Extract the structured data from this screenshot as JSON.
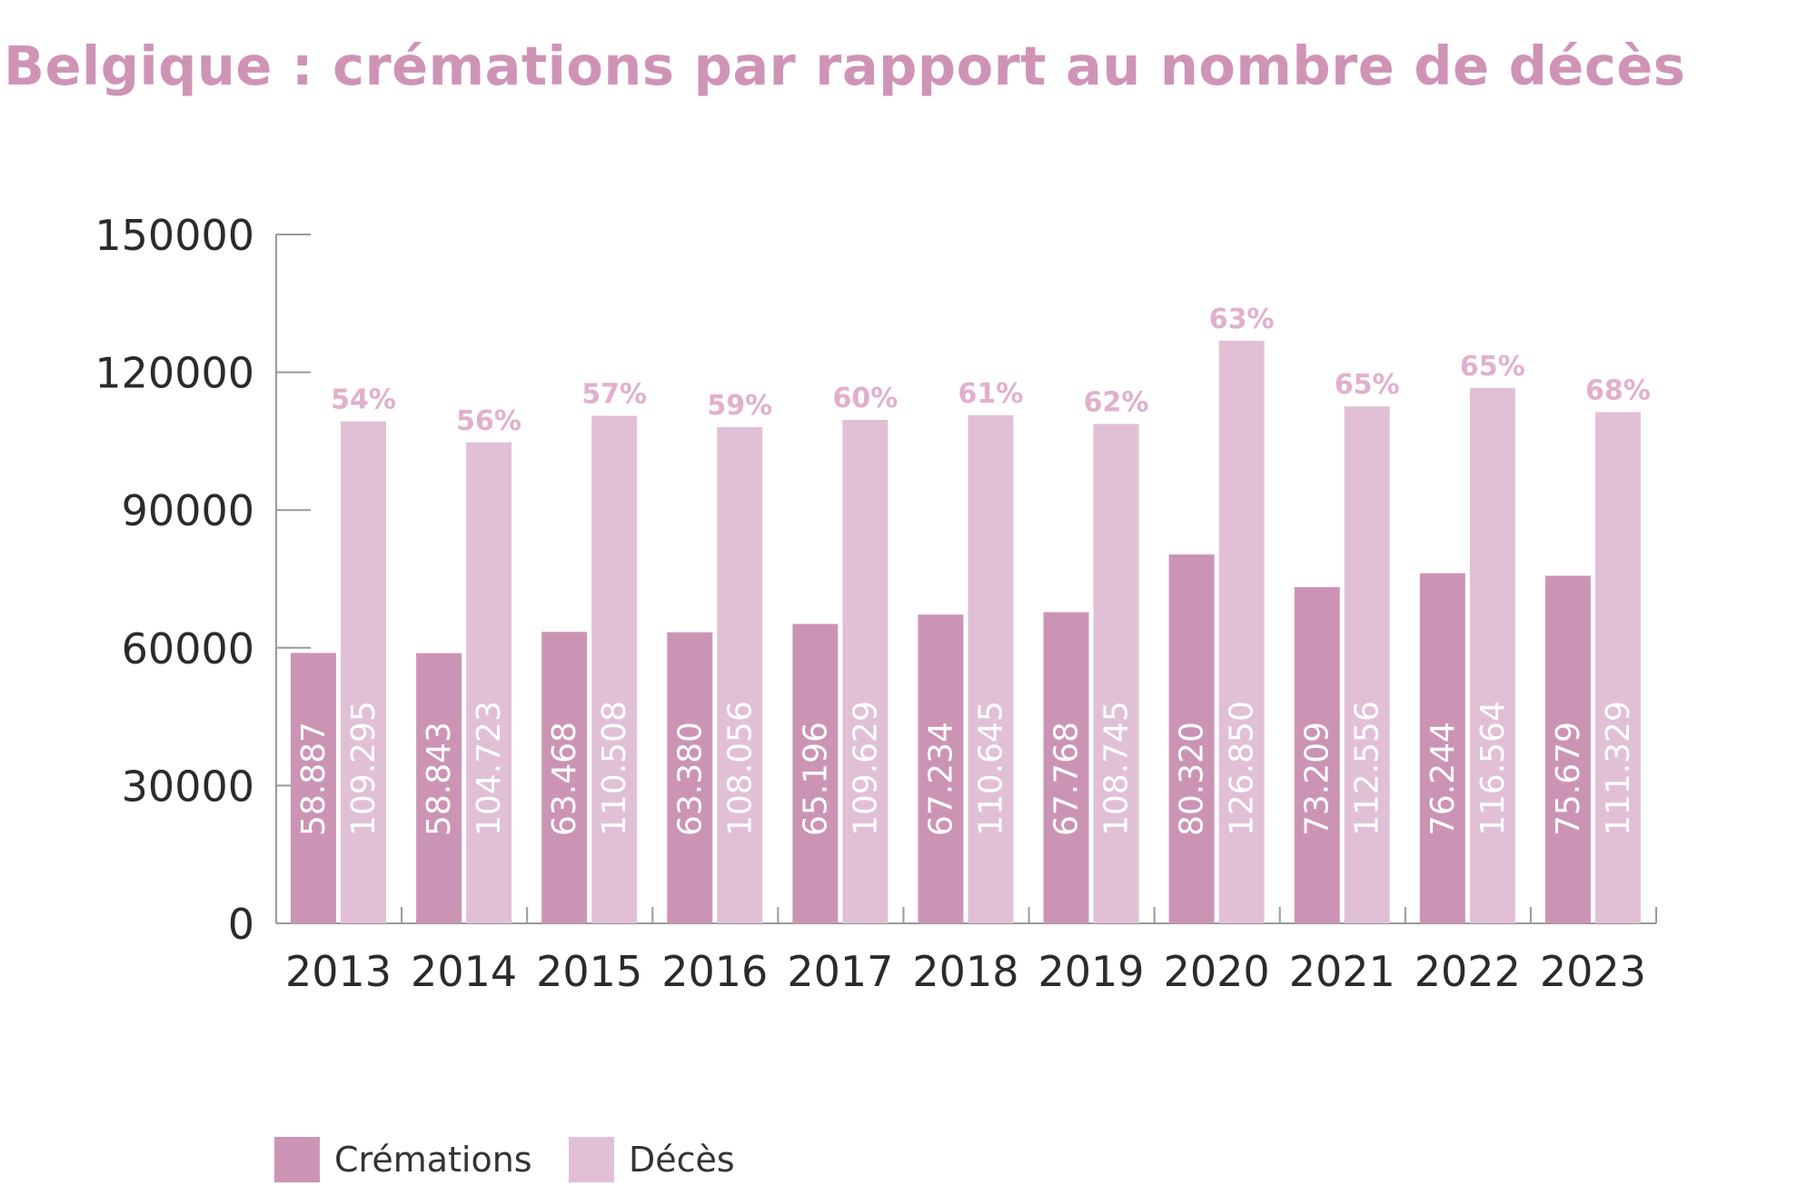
{
  "chart_data": {
    "type": "bar",
    "title": "Belgique : crémations par rapport au nombre de décès",
    "xlabel": "",
    "ylabel": "",
    "ylim": [
      0,
      150000
    ],
    "yticks": [
      "0",
      "30000",
      "60000",
      "90000",
      "120000",
      "150000"
    ],
    "categories": [
      "2013",
      "2014",
      "2015",
      "2016",
      "2017",
      "2018",
      "2019",
      "2020",
      "2021",
      "2022",
      "2023"
    ],
    "series": [
      {
        "name": "Crémations",
        "color": "#cc94b4",
        "values": [
          58887,
          58843,
          63468,
          63380,
          65196,
          67234,
          67768,
          80320,
          73209,
          76244,
          75679
        ],
        "labels": [
          "58.887",
          "58.843",
          "63.468",
          "63.380",
          "65.196",
          "67.234",
          "67.768",
          "80.320",
          "73.209",
          "76.244",
          "75.679"
        ]
      },
      {
        "name": "Décès",
        "color": "#e1c0d6",
        "values": [
          109295,
          104723,
          110508,
          108056,
          109629,
          110645,
          108745,
          126850,
          112556,
          116564,
          111329
        ],
        "labels": [
          "109.295",
          "104.723",
          "110.508",
          "108.056",
          "109.629",
          "110.645",
          "108.745",
          "126.850",
          "112.556",
          "116.564",
          "111.329"
        ]
      }
    ],
    "percentages": [
      "54%",
      "56%",
      "57%",
      "59%",
      "60%",
      "61%",
      "62%",
      "63%",
      "65%",
      "65%",
      "68%"
    ],
    "percent_color": "#e1b0cc",
    "grid": false,
    "legend_position": "bottom-left"
  }
}
